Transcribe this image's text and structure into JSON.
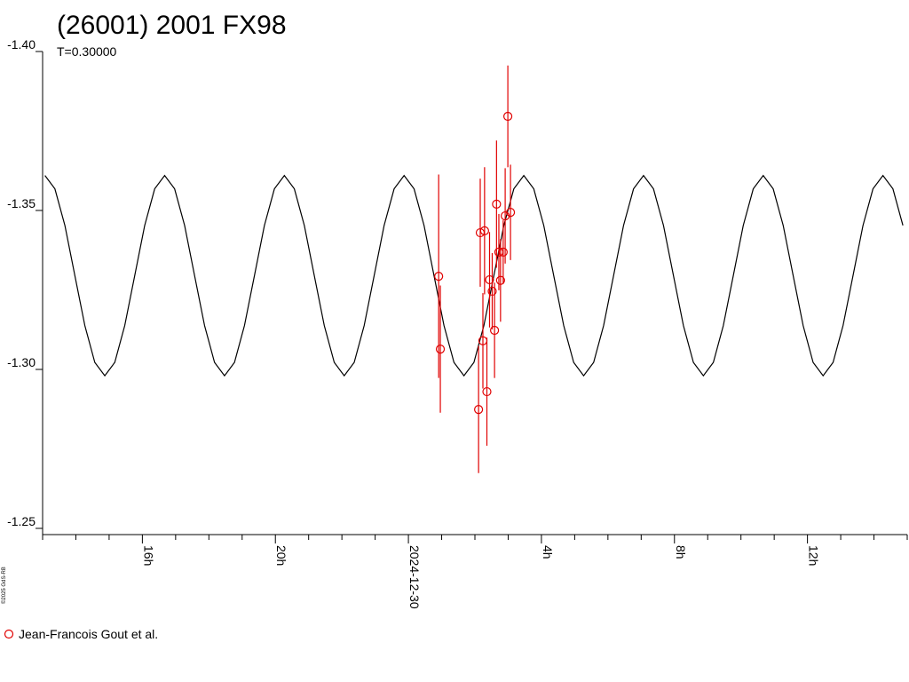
{
  "chart_data": {
    "type": "scatter",
    "title": "(26001) 2001 FX98",
    "subtitle": "T=0.30000",
    "credit": "©2025 GdS-RB",
    "xlim": [
      -11,
      15
    ],
    "xticks": [
      {
        "value": -8,
        "label": "16h"
      },
      {
        "value": -4,
        "label": "20h"
      },
      {
        "value": 0,
        "label": "2024-12-30"
      },
      {
        "value": 4,
        "label": "4h"
      },
      {
        "value": 8,
        "label": "8h"
      },
      {
        "value": 12,
        "label": "12h"
      }
    ],
    "xminorticks": [
      -11,
      -10,
      -9,
      -7,
      -6,
      -5,
      -3,
      -2,
      -1,
      1,
      2,
      3,
      5,
      6,
      7,
      9,
      10,
      11,
      13,
      14,
      15
    ],
    "ylim": [
      -1.4,
      -1.25
    ],
    "y_reversed": true,
    "yticks": [
      {
        "value": -1.4,
        "label": "-1.40"
      },
      {
        "value": -1.35,
        "label": "-1.35"
      },
      {
        "value": -1.3,
        "label": "-1.30"
      },
      {
        "value": -1.25,
        "label": "-1.25"
      }
    ],
    "model": {
      "color": "#000000",
      "x": [
        -10.93,
        -10.63,
        -10.33,
        -10.03,
        -9.73,
        -9.43,
        -9.13,
        -8.83,
        -8.53,
        -8.23,
        -7.93,
        -7.63,
        -7.33,
        -7.03,
        -6.73,
        -6.43,
        -6.13,
        -5.83,
        -5.53,
        -5.23,
        -4.93,
        -4.63,
        -4.33,
        -4.03,
        -3.73,
        -3.43,
        -3.13,
        -2.83,
        -2.53,
        -2.23,
        -1.93,
        -1.63,
        -1.33,
        -1.03,
        -0.73,
        -0.43,
        -0.13,
        0.17,
        0.47,
        0.77,
        1.07,
        1.37,
        1.67,
        1.97,
        2.27,
        2.57,
        2.87,
        3.17,
        3.47,
        3.77,
        4.07,
        4.37,
        4.67,
        4.97,
        5.27,
        5.57,
        5.87,
        6.17,
        6.47,
        6.77,
        7.07,
        7.37,
        7.67,
        7.97,
        8.27,
        8.57,
        8.87,
        9.17,
        9.47,
        9.77,
        10.07,
        10.37,
        10.67,
        10.97,
        11.27,
        11.57,
        11.87,
        12.17,
        12.47,
        12.77,
        13.07,
        13.37,
        13.67,
        13.97,
        14.27,
        14.57,
        14.87
      ],
      "values": [
        -1.361,
        -1.3568,
        -1.3453,
        -1.3295,
        -1.3138,
        -1.3022,
        -1.298,
        -1.3022,
        -1.3138,
        -1.3295,
        -1.3453,
        -1.3568,
        -1.361,
        -1.3568,
        -1.3453,
        -1.3295,
        -1.3138,
        -1.3022,
        -1.298,
        -1.3022,
        -1.3138,
        -1.3295,
        -1.3453,
        -1.3568,
        -1.361,
        -1.3568,
        -1.3453,
        -1.3295,
        -1.3138,
        -1.3022,
        -1.298,
        -1.3022,
        -1.3138,
        -1.3295,
        -1.3453,
        -1.3568,
        -1.361,
        -1.3568,
        -1.3453,
        -1.3295,
        -1.3138,
        -1.3022,
        -1.298,
        -1.3022,
        -1.3138,
        -1.3295,
        -1.3453,
        -1.3568,
        -1.361,
        -1.3568,
        -1.3453,
        -1.3295,
        -1.3138,
        -1.3022,
        -1.298,
        -1.3022,
        -1.3138,
        -1.3295,
        -1.3453,
        -1.3568,
        -1.361,
        -1.3568,
        -1.3453,
        -1.3295,
        -1.3138,
        -1.3022,
        -1.298,
        -1.3022,
        -1.3138,
        -1.3295,
        -1.3453,
        -1.3568,
        -1.361,
        -1.3568,
        -1.3453,
        -1.3295,
        -1.3138,
        -1.3022,
        -1.298,
        -1.3022,
        -1.3138,
        -1.3295,
        -1.3453,
        -1.3568,
        -1.361,
        -1.3568,
        -1.3453
      ]
    },
    "series": [
      {
        "name": "Jean-Francois Gout et al.",
        "color": "#e00000",
        "x": [
          0.91,
          0.96,
          2.11,
          2.16,
          2.24,
          2.29,
          2.36,
          2.44,
          2.52,
          2.59,
          2.65,
          2.72,
          2.77,
          2.85,
          2.91,
          2.99,
          3.07
        ],
        "values": [
          -1.3293,
          -1.3064,
          -1.2874,
          -1.343,
          -1.309,
          -1.3436,
          -1.293,
          -1.3282,
          -1.3246,
          -1.3123,
          -1.352,
          -1.3369,
          -1.328,
          -1.3369,
          -1.3483,
          -1.3796,
          -1.3494
        ],
        "errors": [
          0.032,
          0.02,
          0.02,
          0.017,
          0.015,
          0.02,
          0.017,
          0.015,
          0.012,
          0.015,
          0.02,
          0.012,
          0.013,
          0.01,
          0.015,
          0.016,
          0.015
        ]
      }
    ]
  }
}
